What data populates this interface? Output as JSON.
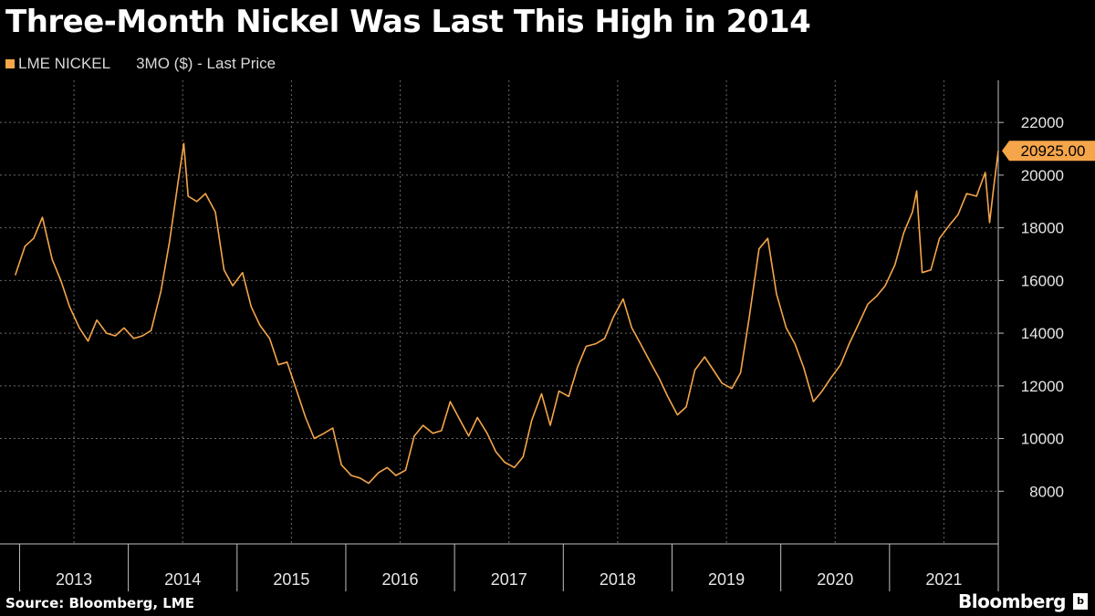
{
  "header": {
    "title": "Three-Month Nickel Was Last This High in 2014"
  },
  "legend": {
    "series_name": "LME NICKEL",
    "series_desc": "3MO ($) - Last Price",
    "color": "#f5a54a"
  },
  "footer": {
    "source": "Source: Bloomberg, LME",
    "brand": "Bloomberg",
    "brand_icon": "b-icon"
  },
  "chart_data": {
    "type": "line",
    "title": "Three-Month Nickel Was Last This High in 2014",
    "series": [
      {
        "name": "LME NICKEL 3MO ($) - Last Price",
        "color": "#f5a54a",
        "points": [
          [
            2012.83,
            16200
          ],
          [
            2012.92,
            17300
          ],
          [
            2013.0,
            17600
          ],
          [
            2013.08,
            18400
          ],
          [
            2013.17,
            16800
          ],
          [
            2013.25,
            16000
          ],
          [
            2013.33,
            15000
          ],
          [
            2013.42,
            14200
          ],
          [
            2013.5,
            13700
          ],
          [
            2013.58,
            14500
          ],
          [
            2013.67,
            14000
          ],
          [
            2013.75,
            13900
          ],
          [
            2013.83,
            14200
          ],
          [
            2013.92,
            13800
          ],
          [
            2014.0,
            13900
          ],
          [
            2014.08,
            14100
          ],
          [
            2014.17,
            15600
          ],
          [
            2014.25,
            17500
          ],
          [
            2014.33,
            19800
          ],
          [
            2014.38,
            21200
          ],
          [
            2014.42,
            19200
          ],
          [
            2014.5,
            19000
          ],
          [
            2014.58,
            19300
          ],
          [
            2014.67,
            18600
          ],
          [
            2014.75,
            16400
          ],
          [
            2014.83,
            15800
          ],
          [
            2014.92,
            16300
          ],
          [
            2015.0,
            15000
          ],
          [
            2015.08,
            14300
          ],
          [
            2015.17,
            13800
          ],
          [
            2015.25,
            12800
          ],
          [
            2015.33,
            12900
          ],
          [
            2015.42,
            11800
          ],
          [
            2015.5,
            10800
          ],
          [
            2015.58,
            10000
          ],
          [
            2015.67,
            10200
          ],
          [
            2015.75,
            10400
          ],
          [
            2015.83,
            9000
          ],
          [
            2015.92,
            8600
          ],
          [
            2016.0,
            8500
          ],
          [
            2016.08,
            8300
          ],
          [
            2016.17,
            8700
          ],
          [
            2016.25,
            8900
          ],
          [
            2016.33,
            8600
          ],
          [
            2016.42,
            8800
          ],
          [
            2016.5,
            10100
          ],
          [
            2016.58,
            10500
          ],
          [
            2016.67,
            10200
          ],
          [
            2016.75,
            10300
          ],
          [
            2016.83,
            11400
          ],
          [
            2016.92,
            10700
          ],
          [
            2017.0,
            10100
          ],
          [
            2017.08,
            10800
          ],
          [
            2017.17,
            10200
          ],
          [
            2017.25,
            9500
          ],
          [
            2017.33,
            9100
          ],
          [
            2017.42,
            8900
          ],
          [
            2017.5,
            9300
          ],
          [
            2017.58,
            10700
          ],
          [
            2017.67,
            11700
          ],
          [
            2017.75,
            10500
          ],
          [
            2017.83,
            11800
          ],
          [
            2017.92,
            11600
          ],
          [
            2018.0,
            12700
          ],
          [
            2018.08,
            13500
          ],
          [
            2018.17,
            13600
          ],
          [
            2018.25,
            13800
          ],
          [
            2018.33,
            14600
          ],
          [
            2018.42,
            15300
          ],
          [
            2018.5,
            14200
          ],
          [
            2018.58,
            13600
          ],
          [
            2018.67,
            12900
          ],
          [
            2018.75,
            12300
          ],
          [
            2018.83,
            11600
          ],
          [
            2018.92,
            10900
          ],
          [
            2019.0,
            11200
          ],
          [
            2019.08,
            12600
          ],
          [
            2019.17,
            13100
          ],
          [
            2019.25,
            12600
          ],
          [
            2019.33,
            12100
          ],
          [
            2019.42,
            11900
          ],
          [
            2019.5,
            12500
          ],
          [
            2019.58,
            14600
          ],
          [
            2019.67,
            17200
          ],
          [
            2019.75,
            17600
          ],
          [
            2019.83,
            15500
          ],
          [
            2019.92,
            14200
          ],
          [
            2020.0,
            13600
          ],
          [
            2020.08,
            12700
          ],
          [
            2020.17,
            11400
          ],
          [
            2020.25,
            11800
          ],
          [
            2020.33,
            12300
          ],
          [
            2020.42,
            12800
          ],
          [
            2020.5,
            13600
          ],
          [
            2020.58,
            14300
          ],
          [
            2020.67,
            15100
          ],
          [
            2020.75,
            15400
          ],
          [
            2020.83,
            15800
          ],
          [
            2020.92,
            16600
          ],
          [
            2021.0,
            17800
          ],
          [
            2021.08,
            18600
          ],
          [
            2021.12,
            19400
          ],
          [
            2021.17,
            16300
          ],
          [
            2021.25,
            16400
          ],
          [
            2021.33,
            17600
          ],
          [
            2021.42,
            18100
          ],
          [
            2021.5,
            18500
          ],
          [
            2021.58,
            19300
          ],
          [
            2021.67,
            19200
          ],
          [
            2021.75,
            20100
          ],
          [
            2021.79,
            18200
          ],
          [
            2021.83,
            19600
          ],
          [
            2021.87,
            20925
          ]
        ]
      }
    ],
    "xlabel": "",
    "ylabel": "",
    "x_tick_labels": [
      "2013",
      "2014",
      "2015",
      "2016",
      "2017",
      "2018",
      "2019",
      "2020",
      "2021"
    ],
    "x_boundaries": [
      2012.87,
      2013.87,
      2014.87,
      2015.87,
      2016.87,
      2017.87,
      2018.87,
      2019.87,
      2020.87,
      2021.87
    ],
    "xlim": [
      2012.69,
      2021.87
    ],
    "ylim": [
      6000,
      23600
    ],
    "y_ticks": [
      8000,
      10000,
      12000,
      14000,
      16000,
      18000,
      20000,
      22000
    ],
    "y_tick_labels": [
      "8000",
      "10000",
      "12000",
      "14000",
      "16000",
      "18000",
      "20000",
      "22000"
    ],
    "last_price_label": "20925.00",
    "last_price_value": 20925,
    "grid": true,
    "legend_position": "top-left"
  }
}
